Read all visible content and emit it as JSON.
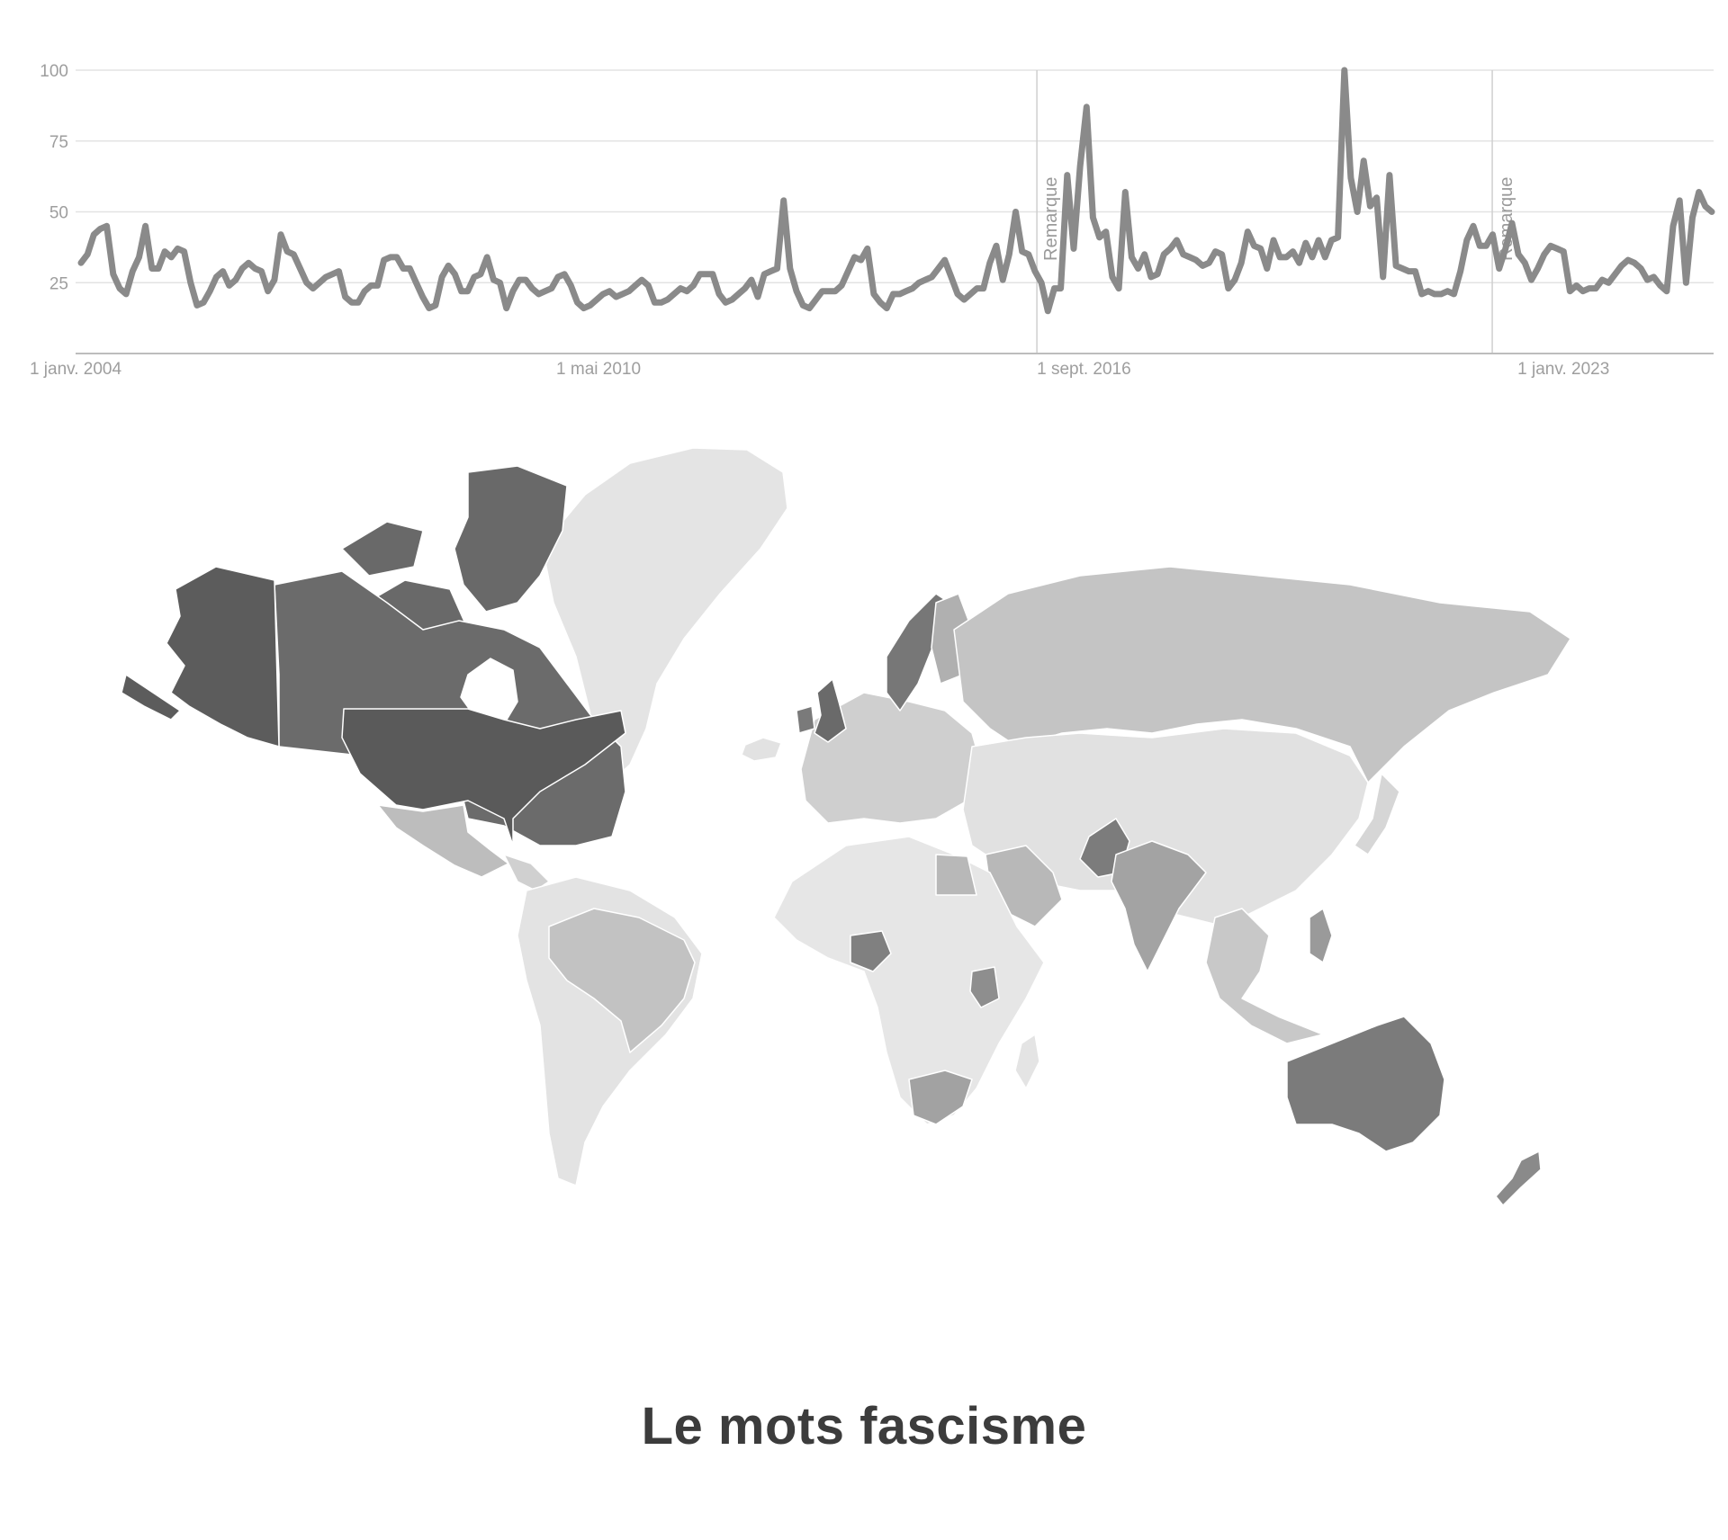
{
  "chart_data": {
    "type": "line",
    "title": "",
    "xlabel": "",
    "ylabel": "",
    "ylim": [
      0,
      100
    ],
    "yticks": [
      25,
      50,
      75,
      100
    ],
    "xticks": [
      {
        "date": "2004-01",
        "label": "1 janv. 2004"
      },
      {
        "date": "2010-05",
        "label": "1 mai 2010"
      },
      {
        "date": "2016-09",
        "label": "1 sept. 2016"
      },
      {
        "date": "2023-01",
        "label": "1 janv. 2023"
      }
    ],
    "xrange": [
      "2004-01",
      "2025-08"
    ],
    "grid": true,
    "annotations": [
      {
        "date": "2016-09",
        "label": "Remarque"
      },
      {
        "date": "2022-09",
        "label": "Remarque"
      }
    ],
    "line_color": "#8a8a8a",
    "series": [
      {
        "values": [
          32,
          35,
          42,
          44,
          45,
          28,
          23,
          21,
          29,
          34,
          45,
          30,
          30,
          36,
          34,
          37,
          36,
          25,
          17,
          18,
          22,
          27,
          29,
          24,
          26,
          30,
          32,
          30,
          29,
          22,
          26,
          42,
          36,
          35,
          30,
          25,
          23,
          25,
          27,
          28,
          29,
          20,
          18,
          18,
          22,
          24,
          24,
          33,
          34,
          34,
          30,
          30,
          25,
          20,
          16,
          17,
          27,
          31,
          28,
          22,
          22,
          27,
          28,
          34,
          26,
          25,
          16,
          22,
          26,
          26,
          23,
          21,
          22,
          23,
          27,
          28,
          24,
          18,
          16,
          17,
          19,
          21,
          22,
          20,
          21,
          22,
          24,
          26,
          24,
          18,
          18,
          19,
          21,
          23,
          22,
          24,
          28,
          28,
          28,
          21,
          18,
          19,
          21,
          23,
          26,
          20,
          28,
          29,
          30,
          54,
          30,
          22,
          17,
          16,
          19,
          22,
          22,
          22,
          24,
          29,
          34,
          33,
          37,
          21,
          18,
          16,
          21,
          21,
          22,
          23,
          25,
          26,
          27,
          30,
          33,
          27,
          21,
          19,
          21,
          23,
          23,
          32,
          38,
          26,
          35,
          50,
          36,
          35,
          29,
          25,
          15,
          23,
          23,
          63,
          37,
          66,
          87,
          48,
          41,
          43,
          27,
          23,
          57,
          34,
          30,
          35,
          27,
          28,
          35,
          37,
          40,
          35,
          34,
          33,
          31,
          32,
          36,
          35,
          23,
          26,
          32,
          43,
          38,
          37,
          30,
          40,
          34,
          34,
          36,
          32,
          39,
          34,
          40,
          34,
          40,
          41,
          100,
          62,
          50,
          68,
          52,
          55,
          27,
          63,
          31,
          30,
          29,
          29,
          21,
          22,
          21,
          21,
          22,
          21,
          29,
          40,
          45,
          38,
          38,
          42,
          30,
          37,
          46,
          35,
          32,
          26,
          30,
          35,
          38,
          37,
          36,
          22,
          24,
          22,
          23,
          23,
          26,
          25,
          28,
          31,
          33,
          32,
          30,
          26,
          27,
          24,
          22,
          45,
          54,
          25,
          48,
          57,
          52,
          50
        ]
      }
    ]
  },
  "map": {
    "regions": [
      {
        "name": "Canada",
        "color": "#6b6b6b"
      },
      {
        "name": "Canadian Arctic",
        "color": "#696969"
      },
      {
        "name": "Alaska",
        "color": "#5c5c5c"
      },
      {
        "name": "United States",
        "color": "#5a5a5a"
      },
      {
        "name": "Greenland",
        "color": "#e4e4e4"
      },
      {
        "name": "Iceland",
        "color": "#e2e2e2"
      },
      {
        "name": "Mexico",
        "color": "#bdbdbd"
      },
      {
        "name": "Central America",
        "color": "#d0d0d0"
      },
      {
        "name": "South America",
        "color": "#e3e3e3"
      },
      {
        "name": "Brazil",
        "color": "#c2c2c2"
      },
      {
        "name": "Africa",
        "color": "#e6e6e6"
      },
      {
        "name": "Nigeria",
        "color": "#808080"
      },
      {
        "name": "Kenya",
        "color": "#8e8e8e"
      },
      {
        "name": "Egypt",
        "color": "#b8b8b8"
      },
      {
        "name": "South Africa",
        "color": "#a2a2a2"
      },
      {
        "name": "Madagascar",
        "color": "#e4e4e4"
      },
      {
        "name": "Europe",
        "color": "#cfcfcf"
      },
      {
        "name": "United Kingdom",
        "color": "#6a6a6a"
      },
      {
        "name": "Ireland",
        "color": "#7a7a7a"
      },
      {
        "name": "Sweden",
        "color": "#777777"
      },
      {
        "name": "Finland",
        "color": "#b0b0b0"
      },
      {
        "name": "Russia",
        "color": "#c4c4c4"
      },
      {
        "name": "Asia",
        "color": "#e1e1e1"
      },
      {
        "name": "Saudi Arabia",
        "color": "#b8b8b8"
      },
      {
        "name": "India",
        "color": "#a3a3a3"
      },
      {
        "name": "Pakistan",
        "color": "#7c7c7c"
      },
      {
        "name": "Southeast Asia",
        "color": "#c8c8c8"
      },
      {
        "name": "Philippines",
        "color": "#9a9a9a"
      },
      {
        "name": "Japan",
        "color": "#d6d6d6"
      },
      {
        "name": "Australia",
        "color": "#7b7b7b"
      },
      {
        "name": "New Zealand",
        "color": "#8a8a8a"
      }
    ]
  },
  "caption": "Le mots fascisme"
}
